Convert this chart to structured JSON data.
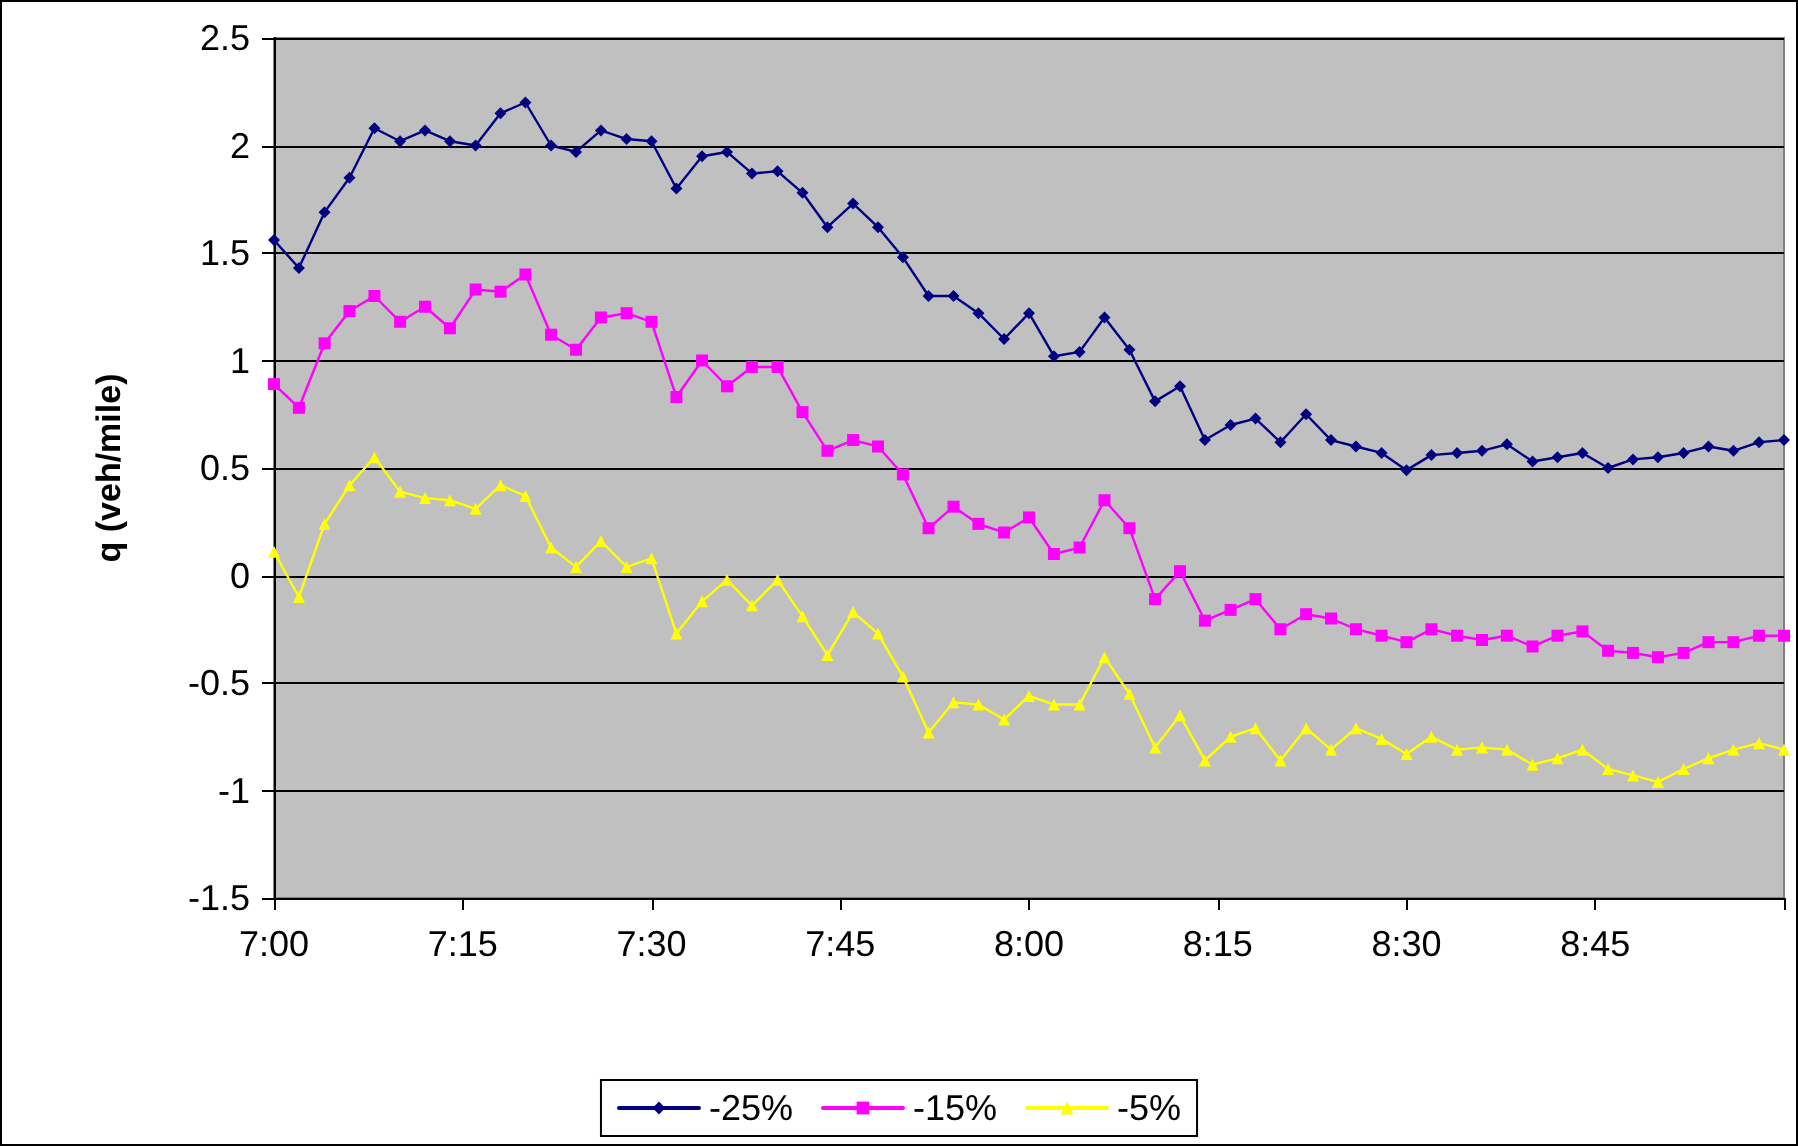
{
  "chart_data": {
    "type": "line",
    "ylabel": "q (veh/mile)",
    "x": [
      7,
      7.033,
      7.067,
      7.1,
      7.133,
      7.167,
      7.2,
      7.233,
      7.267,
      7.3,
      7.333,
      7.367,
      7.4,
      7.433,
      7.467,
      7.5,
      7.533,
      7.567,
      7.6,
      7.633,
      7.667,
      7.7,
      7.733,
      7.767,
      7.8,
      7.833,
      7.867,
      7.9,
      7.933,
      7.967,
      8,
      8.033,
      8.067,
      8.1,
      8.133,
      8.167,
      8.2,
      8.233,
      8.267,
      8.3,
      8.333,
      8.367,
      8.4,
      8.433,
      8.467,
      8.5,
      8.533,
      8.567,
      8.6,
      8.633,
      8.667,
      8.7,
      8.733,
      8.767,
      8.8,
      8.833,
      8.867,
      8.9,
      8.933,
      8.967,
      9
    ],
    "series": [
      {
        "name": "-25%",
        "color": "#000080",
        "marker": "diamond",
        "values": [
          1.56,
          1.43,
          1.69,
          1.85,
          2.08,
          2.02,
          2.07,
          2.02,
          2.0,
          2.15,
          2.2,
          2.0,
          1.97,
          2.07,
          2.03,
          2.02,
          1.8,
          1.95,
          1.97,
          1.87,
          1.88,
          1.78,
          1.62,
          1.73,
          1.62,
          1.48,
          1.3,
          1.3,
          1.22,
          1.1,
          1.22,
          1.02,
          1.04,
          1.2,
          1.05,
          0.81,
          0.88,
          0.63,
          0.7,
          0.73,
          0.62,
          0.75,
          0.63,
          0.6,
          0.57,
          0.49,
          0.56,
          0.57,
          0.58,
          0.61,
          0.53,
          0.55,
          0.57,
          0.5,
          0.54,
          0.55,
          0.57,
          0.6,
          0.58,
          0.62,
          0.63
        ]
      },
      {
        "name": "-15%",
        "color": "#ff00ff",
        "marker": "square",
        "values": [
          0.89,
          0.78,
          1.08,
          1.23,
          1.3,
          1.18,
          1.25,
          1.15,
          1.33,
          1.32,
          1.4,
          1.12,
          1.05,
          1.2,
          1.22,
          1.18,
          0.83,
          1.0,
          0.88,
          0.97,
          0.97,
          0.76,
          0.58,
          0.63,
          0.6,
          0.47,
          0.22,
          0.32,
          0.24,
          0.2,
          0.27,
          0.1,
          0.13,
          0.35,
          0.22,
          -0.11,
          0.02,
          -0.21,
          -0.16,
          -0.11,
          -0.25,
          -0.18,
          -0.2,
          -0.25,
          -0.28,
          -0.31,
          -0.25,
          -0.28,
          -0.3,
          -0.28,
          -0.33,
          -0.28,
          -0.26,
          -0.35,
          -0.36,
          -0.38,
          -0.36,
          -0.31,
          -0.31,
          -0.28,
          -0.28
        ]
      },
      {
        "name": "-5%",
        "color": "#ffff00",
        "marker": "triangle",
        "values": [
          0.11,
          -0.1,
          0.24,
          0.42,
          0.55,
          0.39,
          0.36,
          0.35,
          0.31,
          0.42,
          0.37,
          0.13,
          0.04,
          0.16,
          0.04,
          0.08,
          -0.27,
          -0.12,
          -0.02,
          -0.14,
          -0.02,
          -0.19,
          -0.37,
          -0.17,
          -0.27,
          -0.47,
          -0.73,
          -0.59,
          -0.6,
          -0.67,
          -0.56,
          -0.6,
          -0.6,
          -0.38,
          -0.55,
          -0.8,
          -0.65,
          -0.86,
          -0.75,
          -0.71,
          -0.86,
          -0.71,
          -0.81,
          -0.71,
          -0.76,
          -0.83,
          -0.75,
          -0.81,
          -0.8,
          -0.81,
          -0.88,
          -0.85,
          -0.81,
          -0.9,
          -0.93,
          -0.96,
          -0.9,
          -0.85,
          -0.81,
          -0.78,
          -0.81
        ]
      }
    ],
    "xlim": [
      7,
      9
    ],
    "xticks": [
      {
        "value": 7,
        "label": "7:00"
      },
      {
        "value": 7.25,
        "label": "7:15"
      },
      {
        "value": 7.5,
        "label": "7:30"
      },
      {
        "value": 7.75,
        "label": "7:45"
      },
      {
        "value": 8,
        "label": "8:00"
      },
      {
        "value": 8.25,
        "label": "8:15"
      },
      {
        "value": 8.5,
        "label": "8:30"
      },
      {
        "value": 8.75,
        "label": "8:45"
      },
      {
        "value": 9,
        "label": null
      }
    ],
    "ylim": [
      -1.5,
      2.5
    ],
    "yticks": [
      -1.5,
      -1,
      -0.5,
      0,
      0.5,
      1,
      1.5,
      2,
      2.5
    ],
    "grid": "y",
    "legend": "bottom",
    "line_style": "solid"
  }
}
